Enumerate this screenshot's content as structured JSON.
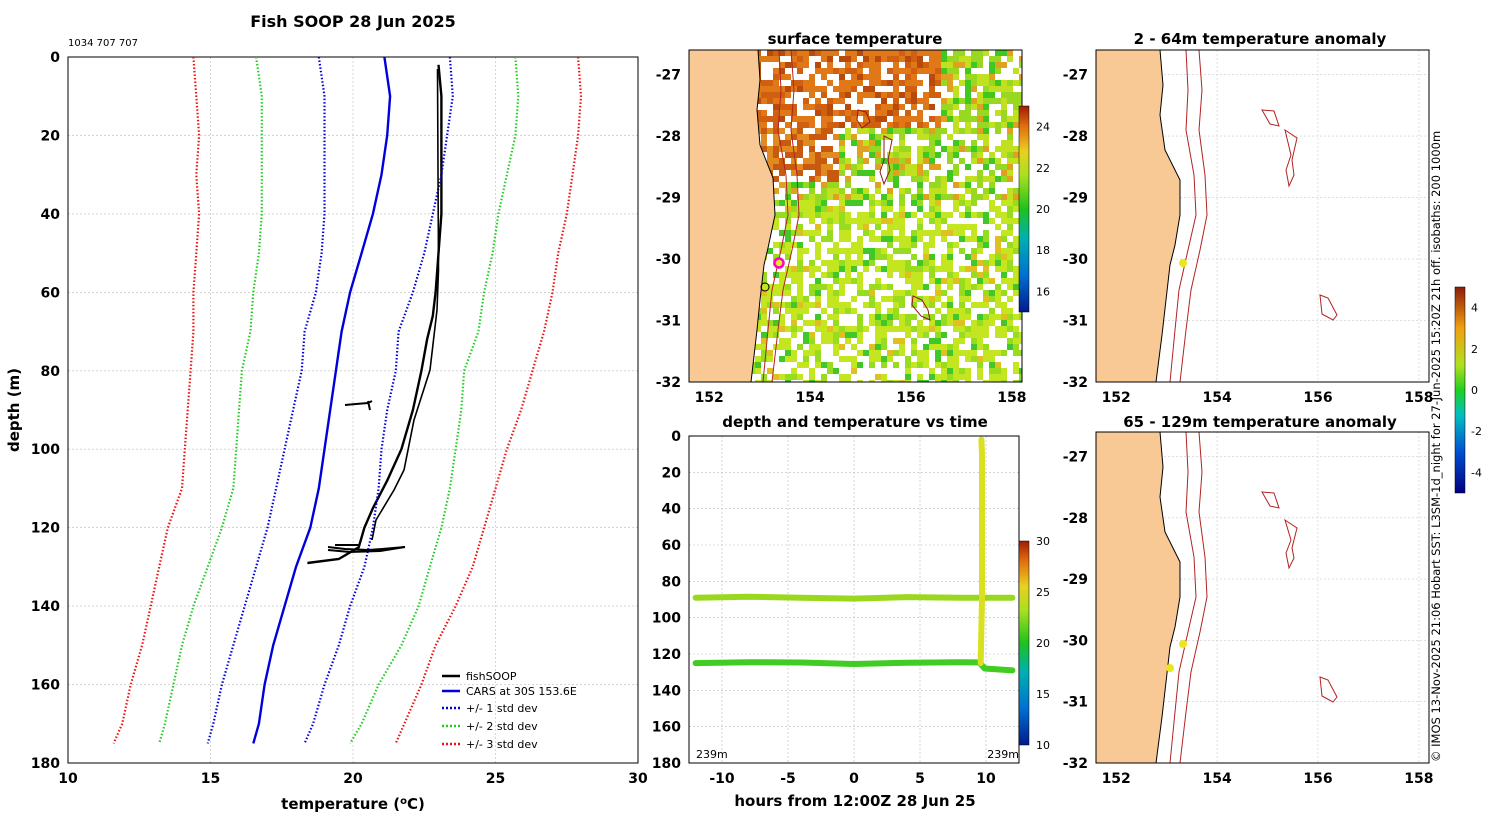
{
  "figure": {
    "title": "Fish SOOP 28 Jun 2025",
    "id_text": "1034 707 707",
    "side_note": "© IMOS 13-Nov-2025 21:06 Hobart SST: L3SM-1d_night for 27-Jun-2025 15:20Z 21h off. isobaths: 200  1000m",
    "colors": {
      "fishsoop": "#000000",
      "cars": "#0000dd",
      "std1": "#0000dd",
      "std2": "#22cc22",
      "std3": "#ee1111",
      "land": "#f8c995",
      "isobath": "#b22222",
      "marker": "#e8e81a"
    }
  },
  "chart_data": [
    {
      "id": "profile",
      "type": "line",
      "title": "",
      "xlabel": "temperature (°C)",
      "ylabel": "depth (m)",
      "xlim": [
        10,
        30
      ],
      "ylim": [
        0,
        180
      ],
      "xticks": [
        10,
        15,
        20,
        25,
        30
      ],
      "yticks": [
        0,
        20,
        40,
        60,
        80,
        100,
        120,
        140,
        160,
        180
      ],
      "grid": true,
      "legend_position": "bottom-right",
      "series": [
        {
          "name": "fishSOOP",
          "style": "solid",
          "color": "#000000",
          "x": [
            23.0,
            23.1,
            23.1,
            23.1,
            23.1,
            23.0,
            22.9,
            22.8,
            22.6,
            22.4,
            22.1,
            21.7,
            21.2,
            20.7,
            20.4,
            20.2,
            19.5,
            18.4
          ],
          "y": [
            2,
            10,
            20,
            30,
            40,
            50,
            60,
            66,
            72,
            80,
            90,
            100,
            108,
            115,
            120,
            125,
            128,
            129
          ]
        },
        {
          "name": "CARS at 30S 153.6E",
          "style": "solid",
          "color": "#0000dd",
          "x": [
            21.1,
            21.3,
            21.2,
            21.0,
            20.7,
            20.3,
            19.9,
            19.6,
            19.4,
            19.2,
            19.0,
            18.8,
            18.5,
            18.0,
            17.6,
            17.2,
            16.9,
            16.7,
            16.5
          ],
          "y": [
            0,
            10,
            20,
            30,
            40,
            50,
            60,
            70,
            80,
            90,
            100,
            110,
            120,
            130,
            140,
            150,
            160,
            170,
            175
          ]
        },
        {
          "name": "+/- 1 std dev",
          "style": "dotted",
          "color": "#0000dd",
          "x": [
            18.8,
            19.0,
            19.0,
            19.0,
            19.0,
            18.9,
            18.7,
            18.3,
            18.2,
            17.9,
            17.6,
            17.3,
            17.0,
            16.6,
            16.2,
            15.8,
            15.4,
            15.1,
            14.9
          ],
          "y": [
            0,
            10,
            20,
            30,
            40,
            50,
            60,
            70,
            80,
            90,
            100,
            110,
            120,
            130,
            140,
            150,
            160,
            170,
            175
          ]
        },
        {
          "name": "+/- 1 std dev",
          "style": "dotted",
          "color": "#0000dd",
          "x": [
            23.4,
            23.5,
            23.3,
            23.1,
            22.8,
            22.5,
            22.1,
            21.6,
            21.5,
            21.2,
            21.0,
            20.9,
            20.7,
            20.4,
            19.9,
            19.5,
            19.0,
            18.6,
            18.3
          ],
          "y": [
            0,
            10,
            20,
            30,
            40,
            50,
            60,
            70,
            80,
            90,
            100,
            110,
            120,
            130,
            140,
            150,
            160,
            170,
            175
          ]
        },
        {
          "name": "+/- 2 std dev",
          "style": "dotted",
          "color": "#22cc22",
          "x": [
            16.6,
            16.8,
            16.8,
            16.8,
            16.8,
            16.7,
            16.5,
            16.4,
            16.1,
            16.0,
            15.9,
            15.8,
            15.4,
            14.9,
            14.4,
            14.0,
            13.7,
            13.4,
            13.2
          ],
          "y": [
            0,
            10,
            20,
            30,
            40,
            50,
            60,
            70,
            80,
            90,
            100,
            110,
            120,
            130,
            140,
            150,
            160,
            170,
            175
          ]
        },
        {
          "name": "+/- 2 std dev",
          "style": "dotted",
          "color": "#22cc22",
          "x": [
            25.7,
            25.8,
            25.7,
            25.4,
            25.1,
            24.9,
            24.6,
            24.4,
            23.9,
            23.8,
            23.6,
            23.4,
            23.1,
            22.7,
            22.3,
            21.7,
            20.9,
            20.3,
            19.9
          ],
          "y": [
            0,
            10,
            20,
            30,
            40,
            50,
            60,
            70,
            80,
            90,
            100,
            110,
            120,
            130,
            140,
            150,
            160,
            170,
            175
          ]
        },
        {
          "name": "+/- 3 std dev",
          "style": "dotted",
          "color": "#ee1111",
          "x": [
            14.4,
            14.5,
            14.6,
            14.5,
            14.6,
            14.5,
            14.4,
            14.4,
            14.3,
            14.2,
            14.1,
            14.0,
            13.5,
            13.2,
            12.9,
            12.6,
            12.2,
            11.9,
            11.6
          ],
          "y": [
            0,
            10,
            20,
            30,
            40,
            50,
            60,
            70,
            80,
            90,
            100,
            110,
            120,
            130,
            140,
            150,
            160,
            170,
            175
          ]
        },
        {
          "name": "+/- 3 std dev",
          "style": "dotted",
          "color": "#ee1111",
          "x": [
            27.9,
            28.0,
            27.9,
            27.7,
            27.5,
            27.2,
            27.0,
            26.7,
            26.3,
            25.9,
            25.4,
            25.0,
            24.6,
            24.2,
            23.6,
            22.9,
            22.4,
            21.8,
            21.5
          ],
          "y": [
            0,
            10,
            20,
            30,
            40,
            50,
            60,
            70,
            80,
            90,
            100,
            110,
            120,
            130,
            140,
            150,
            160,
            170,
            175
          ]
        }
      ]
    },
    {
      "id": "depth_time",
      "type": "scatter",
      "title": "depth and temperature vs time",
      "xlabel": "hours from 12:00Z 28 Jun 25",
      "ylabel": "",
      "xlim": [
        -12.5,
        12.5
      ],
      "ylim": [
        0,
        180
      ],
      "xticks": [
        -10,
        -5,
        0,
        5,
        10
      ],
      "yticks": [
        0,
        20,
        40,
        60,
        80,
        100,
        120,
        140,
        160,
        180
      ],
      "grid": true,
      "corner_labels": [
        "239m",
        "239m"
      ],
      "colorbar": {
        "ticks": [
          10,
          15,
          20,
          25,
          30
        ],
        "range": [
          10,
          30
        ]
      },
      "series": [
        {
          "name": "lower track",
          "temp": 20.6,
          "x": [
            -12.0,
            -8,
            -4,
            0,
            4,
            8,
            9.5,
            9.9,
            12.0
          ],
          "y": [
            125,
            124.5,
            124.7,
            125.5,
            124.8,
            124.5,
            124.6,
            128,
            129
          ]
        },
        {
          "name": "upper track",
          "temp": 21.8,
          "x": [
            -12.0,
            -8,
            -4,
            0,
            4,
            8,
            12.0
          ],
          "y": [
            89,
            88.5,
            89,
            89.5,
            88.7,
            89,
            89
          ]
        },
        {
          "name": "ascent",
          "temp": 23.3,
          "x": [
            9.6,
            9.7,
            9.7,
            9.7,
            9.65
          ],
          "y": [
            125,
            90,
            50,
            10,
            2
          ]
        }
      ]
    },
    {
      "id": "sst_map",
      "type": "heatmap",
      "title": "surface temperature",
      "xlim": [
        151.6,
        158.2
      ],
      "ylim": [
        -32,
        -26.6
      ],
      "xticks": [
        152,
        154,
        156,
        158
      ],
      "yticks": [
        -27,
        -28,
        -29,
        -30,
        -31,
        -32
      ],
      "colorbar": {
        "ticks": [
          16,
          18,
          20,
          22,
          24
        ],
        "range": [
          15,
          25
        ]
      },
      "markers": [
        {
          "lon": 153.6,
          "lat": -30.0,
          "kind": "ship-magenta"
        },
        {
          "lon": 153.3,
          "lat": -30.3,
          "kind": "open-circle"
        }
      ]
    },
    {
      "id": "anom_2_64",
      "type": "heatmap",
      "title": "2 - 64m temperature anomaly",
      "xlim": [
        151.6,
        158.2
      ],
      "ylim": [
        -32,
        -26.6
      ],
      "xticks": [
        152,
        154,
        156,
        158
      ],
      "yticks": [
        -27,
        -28,
        -29,
        -30,
        -31,
        -32
      ],
      "markers": [
        {
          "lon": 153.55,
          "lat": -30.0,
          "kind": "yellow-dot"
        }
      ]
    },
    {
      "id": "anom_65_129",
      "type": "heatmap",
      "title": "65 - 129m temperature anomaly",
      "xlim": [
        151.6,
        158.2
      ],
      "ylim": [
        -32,
        -26.6
      ],
      "xticks": [
        152,
        154,
        156,
        158
      ],
      "yticks": [
        -27,
        -28,
        -29,
        -30,
        -31,
        -32
      ],
      "colorbar": {
        "ticks": [
          -4,
          -2,
          0,
          2,
          4
        ],
        "range": [
          -5,
          5
        ]
      },
      "markers": [
        {
          "lon": 153.55,
          "lat": -30.0,
          "kind": "yellow-dot"
        },
        {
          "lon": 153.25,
          "lat": -30.35,
          "kind": "yellow-dot"
        }
      ]
    }
  ]
}
